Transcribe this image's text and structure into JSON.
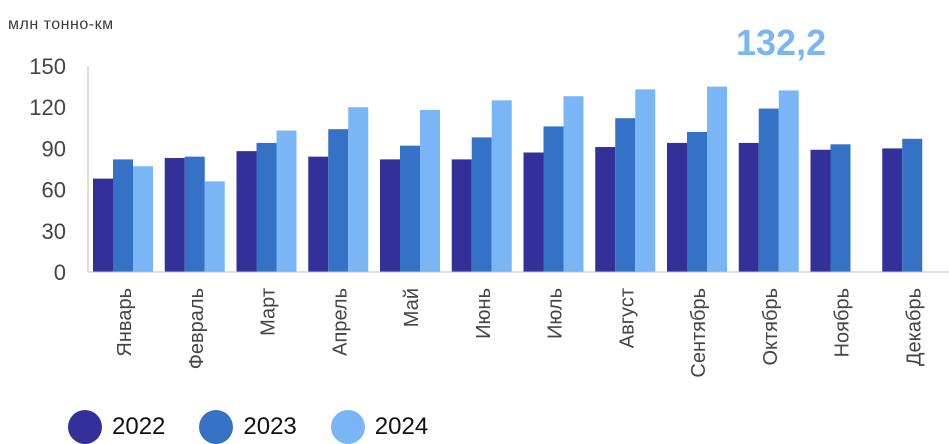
{
  "unit_label": "млн тонно-км",
  "callout": {
    "text": "132,2",
    "color": "#7ab6f6"
  },
  "colors": {
    "2022": "#34309a",
    "2023": "#3572c6",
    "2024": "#7ab6f6"
  },
  "legend": [
    {
      "label": "2022",
      "color": "#34309a"
    },
    {
      "label": "2023",
      "color": "#3572c6"
    },
    {
      "label": "2024",
      "color": "#7ab6f6"
    }
  ],
  "chart_data": {
    "type": "bar",
    "title": "",
    "xlabel": "",
    "ylabel": "млн тонно-км",
    "ylim": [
      0,
      150
    ],
    "yticks": [
      "0",
      "30",
      "60",
      "90",
      "120",
      "150"
    ],
    "grid": false,
    "legend_position": "bottom-left",
    "categories": [
      "Январь",
      "Февраль",
      "Март",
      "Апрель",
      "Май",
      "Июнь",
      "Июль",
      "Август",
      "Сентябрь",
      "Октябрь",
      "Ноябрь",
      "Декабрь"
    ],
    "series": [
      {
        "name": "2022",
        "color": "#34309a",
        "values": [
          68,
          83,
          88,
          84,
          82,
          82,
          87,
          91,
          94,
          94,
          89,
          90
        ]
      },
      {
        "name": "2023",
        "color": "#3572c6",
        "values": [
          82,
          84,
          94,
          104,
          92,
          98,
          106,
          112,
          102,
          119,
          93,
          97
        ]
      },
      {
        "name": "2024",
        "color": "#7ab6f6",
        "values": [
          77,
          66,
          103,
          120,
          118,
          125,
          128,
          133,
          135,
          132.2,
          null,
          null
        ]
      }
    ]
  }
}
